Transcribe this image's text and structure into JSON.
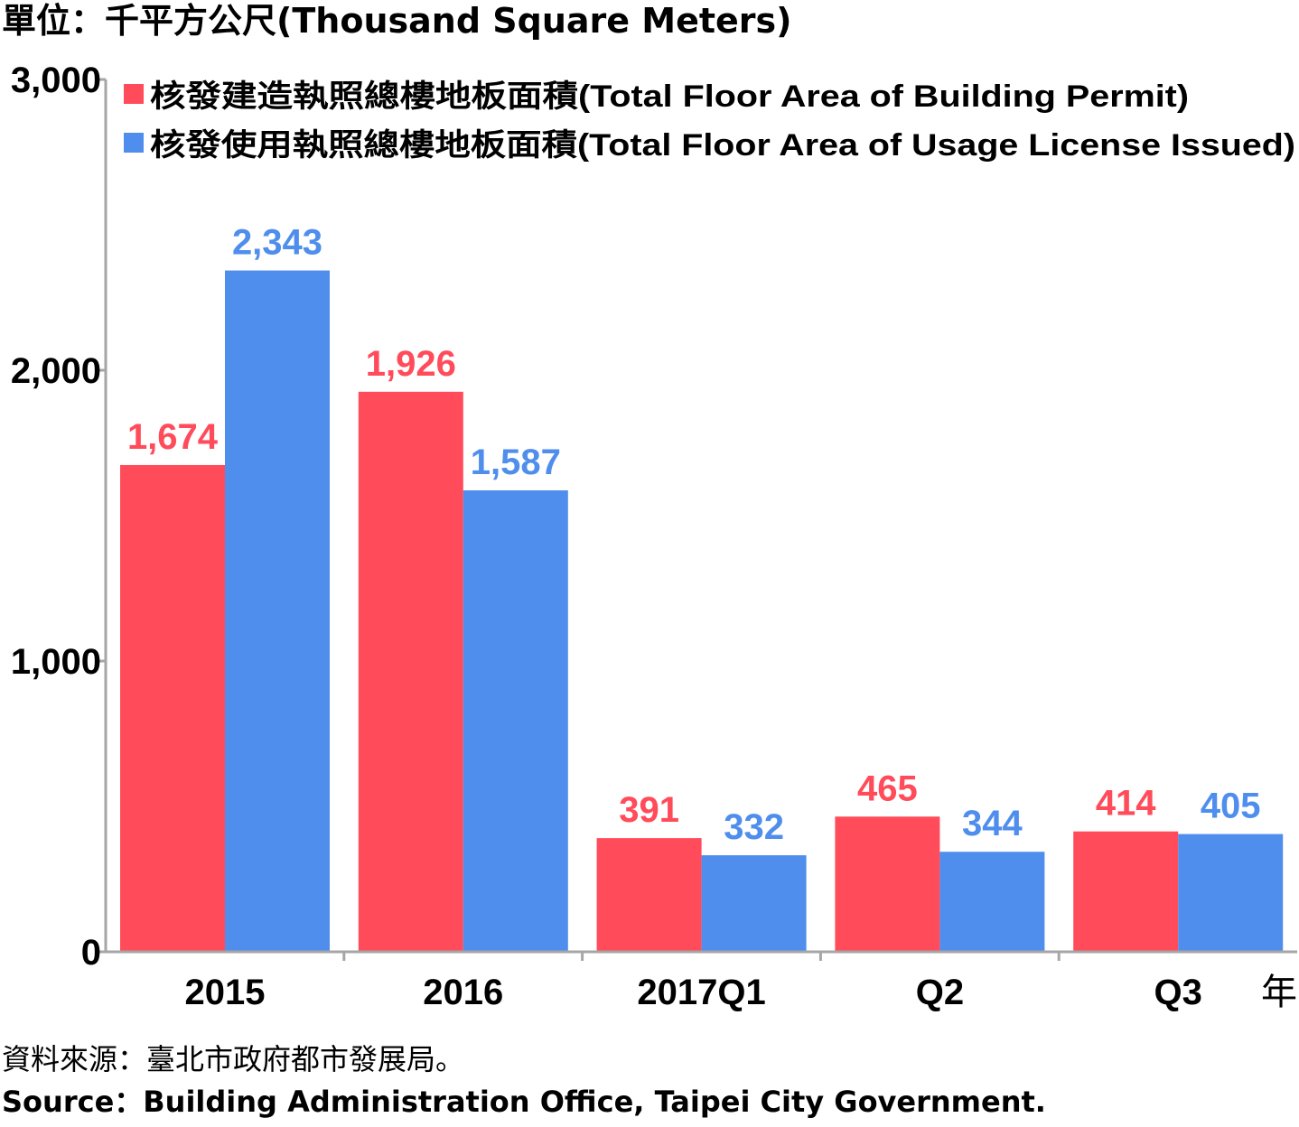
{
  "unit_label": "單位：千平方公尺(Thousand Square Meters)",
  "source_zh": "資料來源：臺北市政府都市發展局。",
  "source_en": "Source：Building Administration Office, Taipei City Government.",
  "colors": {
    "permit": "#FF4B5A",
    "license": "#4F8EEC",
    "axis": "#A6A6A6"
  },
  "chart_data": {
    "type": "bar",
    "categories": [
      "2015",
      "2016",
      "2017Q1",
      "Q2",
      "Q3"
    ],
    "x_unit_label": "年",
    "series": [
      {
        "name": "核發建造執照總樓地板面積(Total Floor Area of Building Permit)",
        "values": [
          1674,
          1926,
          391,
          465,
          414
        ],
        "value_labels": [
          "1,674",
          "1,926",
          "391",
          "465",
          "414"
        ]
      },
      {
        "name": "核發使用執照總樓地板面積(Total Floor Area of Usage License Issued)",
        "values": [
          2343,
          1587,
          332,
          344,
          405
        ],
        "value_labels": [
          "2,343",
          "1,587",
          "332",
          "344",
          "405"
        ]
      }
    ],
    "ylim": [
      0,
      3000
    ],
    "yticks": [
      0,
      1000,
      2000,
      3000
    ],
    "ytick_labels": [
      "0",
      "1,000",
      "2,000",
      "3,000"
    ],
    "legend_position": "top"
  }
}
